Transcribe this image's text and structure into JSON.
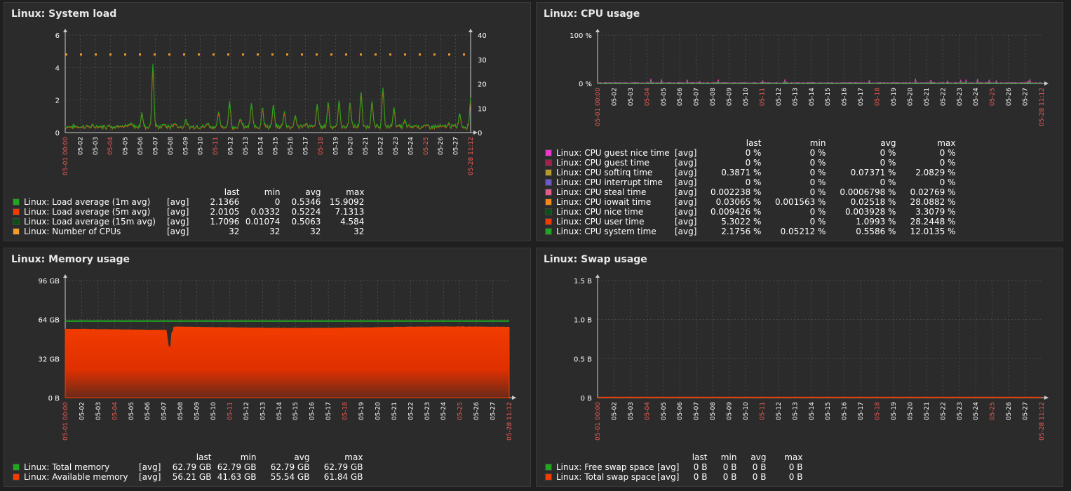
{
  "colors": {
    "background": "#1f1f1f",
    "panel": "#2b2b2b",
    "grid": "#555555",
    "axis_label": "#ffffff",
    "weekend_label": "#f25c54"
  },
  "time_axis": {
    "start_label": "05-01 00:00",
    "end_label": "05-28 11:12",
    "ticks": [
      "05-02",
      "05-03",
      "05-04",
      "05-05",
      "05-06",
      "05-07",
      "05-08",
      "05-09",
      "05-10",
      "05-11",
      "05-12",
      "05-13",
      "05-14",
      "05-15",
      "05-16",
      "05-17",
      "05-18",
      "05-19",
      "05-20",
      "05-21",
      "05-22",
      "05-23",
      "05-24",
      "05-25",
      "05-26",
      "05-27"
    ],
    "weekend_ticks": [
      "05-04",
      "05-11",
      "05-18",
      "05-25"
    ]
  },
  "columns": {
    "last": "last",
    "min": "min",
    "avg": "avg",
    "max": "max"
  },
  "panels": [
    {
      "title": "Linux: System load",
      "chart_data": {
        "type": "line",
        "y_ticks": [
          "0",
          "2",
          "4",
          "6"
        ],
        "y2_ticks": [
          "0",
          "10",
          "20",
          "30",
          "40"
        ],
        "ylim": [
          0,
          6
        ],
        "y2lim": [
          0,
          40
        ],
        "series": [
          {
            "name": "Linux: Load average (1m avg)",
            "color": "#1fa81f",
            "func": "[avg]",
            "last": "2.1366",
            "min": "0",
            "avg": "0.5346",
            "max": "15.9092"
          },
          {
            "name": "Linux: Load average (5m avg)",
            "color": "#f23c00",
            "func": "[avg]",
            "last": "2.0105",
            "min": "0.0332",
            "avg": "0.5224",
            "max": "7.1313"
          },
          {
            "name": "Linux: Load average (15m avg)",
            "color": "#0b5016",
            "func": "[avg]",
            "last": "1.7096",
            "min": "0.01074",
            "avg": "0.5063",
            "max": "4.584"
          },
          {
            "name": "Linux: Number of CPUs",
            "color": "#f29b28",
            "func": "[avg]",
            "last": "32",
            "min": "32",
            "avg": "32",
            "max": "32"
          }
        ],
        "peaks": [
          0.3,
          0.35,
          0.4,
          0.3,
          0.5,
          0.45,
          0.6,
          1.2,
          4.3,
          0.5,
          0.6,
          0.8,
          0.4,
          0.6,
          1.3,
          2.0,
          0.9,
          1.8,
          1.6,
          1.7,
          1.3,
          1.1,
          0.6,
          1.8,
          1.9,
          2.0,
          1.9,
          2.5,
          2.0,
          2.8,
          1.6,
          0.8,
          0.5,
          0.5,
          0.4,
          0.6,
          1.2,
          2.1
        ]
      }
    },
    {
      "title": "Linux: CPU usage",
      "chart_data": {
        "type": "area",
        "y_ticks": [
          "0 %",
          "100 %"
        ],
        "ylim": [
          0,
          100
        ],
        "series": [
          {
            "name": "Linux: CPU guest nice time",
            "color": "#ed36cc",
            "func": "[avg]",
            "last": "0 %",
            "min": "0 %",
            "avg": "0 %",
            "max": "0 %"
          },
          {
            "name": "Linux: CPU guest time",
            "color": "#a0214d",
            "func": "[avg]",
            "last": "0 %",
            "min": "0 %",
            "avg": "0 %",
            "max": "0 %"
          },
          {
            "name": "Linux: CPU softirq time",
            "color": "#b69b29",
            "func": "[avg]",
            "last": "0.3871 %",
            "min": "0 %",
            "avg": "0.07371 %",
            "max": "2.0829 %"
          },
          {
            "name": "Linux: CPU interrupt time",
            "color": "#6a5acd",
            "func": "[avg]",
            "last": "0 %",
            "min": "0 %",
            "avg": "0 %",
            "max": "0 %"
          },
          {
            "name": "Linux: CPU steal time",
            "color": "#e25d8b",
            "func": "[avg]",
            "last": "0.002238 %",
            "min": "0 %",
            "avg": "0.0006798 %",
            "max": "0.02769 %"
          },
          {
            "name": "Linux: CPU iowait time",
            "color": "#f2881a",
            "func": "[avg]",
            "last": "0.03065 %",
            "min": "0.001563 %",
            "avg": "0.02518 %",
            "max": "28.0882 %"
          },
          {
            "name": "Linux: CPU nice time",
            "color": "#0b5016",
            "func": "[avg]",
            "last": "0.009426 %",
            "min": "0 %",
            "avg": "0.003928 %",
            "max": "3.3079 %"
          },
          {
            "name": "Linux: CPU user time",
            "color": "#f23c00",
            "func": "[avg]",
            "last": "5.3022 %",
            "min": "0 %",
            "avg": "1.0993 %",
            "max": "28.2448 %"
          },
          {
            "name": "Linux: CPU system time",
            "color": "#1fa81f",
            "func": "[avg]",
            "last": "2.1756 %",
            "min": "0.05212 %",
            "avg": "0.5586 %",
            "max": "12.0135 %"
          }
        ]
      }
    },
    {
      "title": "Linux: Memory usage",
      "chart_data": {
        "type": "area",
        "y_ticks": [
          "0 B",
          "32 GB",
          "64 GB",
          "96 GB"
        ],
        "ylim": [
          0,
          96
        ],
        "total_gb": 62.79,
        "available_gb": 56.21,
        "series": [
          {
            "name": "Linux: Total memory",
            "color": "#1fa81f",
            "func": "[avg]",
            "last": "62.79 GB",
            "min": "62.79 GB",
            "avg": "62.79 GB",
            "max": "62.79 GB"
          },
          {
            "name": "Linux: Available memory",
            "color": "#f23c00",
            "func": "[avg]",
            "last": "56.21 GB",
            "min": "41.63 GB",
            "avg": "55.54 GB",
            "max": "61.84 GB"
          }
        ]
      }
    },
    {
      "title": "Linux: Swap usage",
      "chart_data": {
        "type": "line",
        "y_ticks": [
          "0 B",
          "0.5 B",
          "1.0 B",
          "1.5 B"
        ],
        "ylim": [
          0,
          1.5
        ],
        "series": [
          {
            "name": "Linux: Free swap space",
            "color": "#1fa81f",
            "func": "[avg]",
            "last": "0 B",
            "min": "0 B",
            "avg": "0 B",
            "max": "0 B"
          },
          {
            "name": "Linux: Total swap space",
            "color": "#f23c00",
            "func": "[avg]",
            "last": "0 B",
            "min": "0 B",
            "avg": "0 B",
            "max": "0 B"
          }
        ]
      }
    }
  ]
}
